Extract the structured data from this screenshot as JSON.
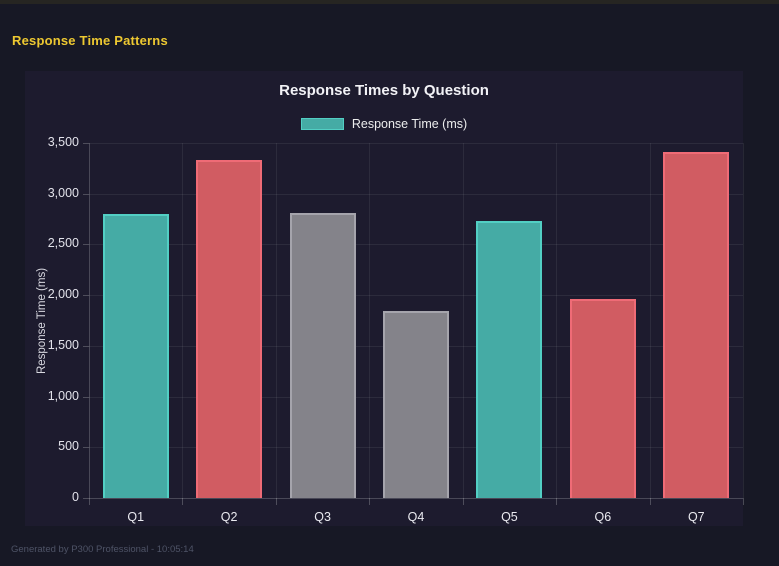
{
  "page": {
    "title": "Response Time Patterns",
    "footer": "Generated by P300 Professional - 10:05:14"
  },
  "chart": {
    "title": "Response Times by Question",
    "legend_label": "Response Time (ms)",
    "y_axis_title": "Response Time (ms)"
  },
  "chart_data": {
    "type": "bar",
    "title": "Response Times by Question",
    "categories": [
      "Q1",
      "Q2",
      "Q3",
      "Q4",
      "Q5",
      "Q6",
      "Q7"
    ],
    "values": [
      2800,
      3330,
      2810,
      1840,
      2730,
      1960,
      3410
    ],
    "series_label": "Response Time (ms)",
    "xlabel": "",
    "ylabel": "Response Time (ms)",
    "ylim": [
      0,
      3500
    ],
    "ytick_step": 500,
    "grid": true,
    "legend_position": "top",
    "bar_colors": [
      "#45aba5",
      "#d15c62",
      "#84838a",
      "#84838a",
      "#45aba5",
      "#d15c62",
      "#d15c62"
    ],
    "bar_border_colors": [
      "#52cfc4",
      "#ef6b76",
      "#a5a4ac",
      "#a5a4ac",
      "#52cfc4",
      "#ef6b76",
      "#ef6b76"
    ],
    "legend_swatch": {
      "fill": "#45aba5",
      "border": "#52cfc4"
    }
  },
  "colors": {
    "page_bg": "#171825",
    "panel_bg": "#1d1b2e",
    "top_strip": "#262522",
    "accent_yellow": "#edc831",
    "teal": "#45aba5",
    "red": "#d15c62",
    "gray": "#84838a"
  }
}
